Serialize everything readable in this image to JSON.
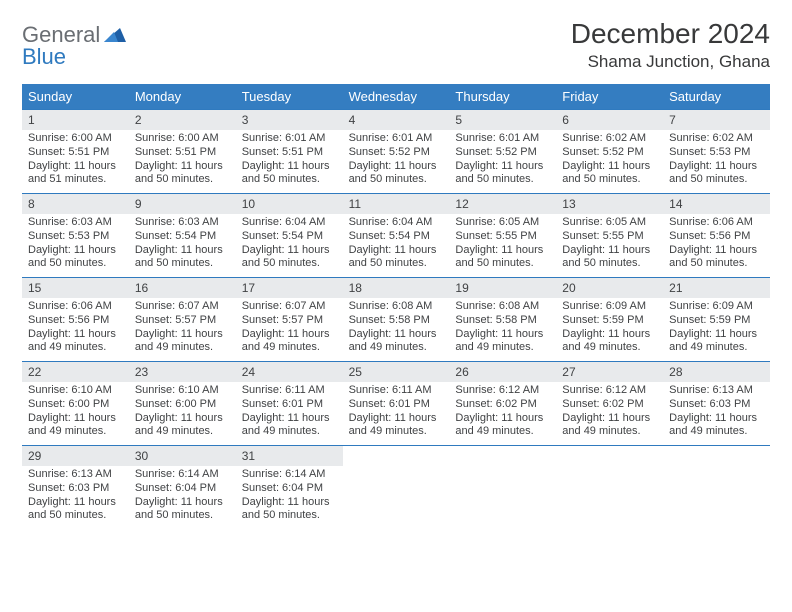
{
  "brand": {
    "general": "General",
    "blue": "Blue"
  },
  "title": {
    "month": "December 2024",
    "location": "Shama Junction, Ghana"
  },
  "colors": {
    "header_bg": "#347dc1",
    "header_text": "#ffffff",
    "daynum_bg": "#e8eaec",
    "week_border": "#2f7abf",
    "text": "#404244"
  },
  "weekdays": [
    "Sunday",
    "Monday",
    "Tuesday",
    "Wednesday",
    "Thursday",
    "Friday",
    "Saturday"
  ],
  "layout": {
    "first_weekday_index": 0
  },
  "days": [
    {
      "n": 1,
      "sunrise": "6:00 AM",
      "sunset": "5:51 PM",
      "daylight": "11 hours and 51 minutes."
    },
    {
      "n": 2,
      "sunrise": "6:00 AM",
      "sunset": "5:51 PM",
      "daylight": "11 hours and 50 minutes."
    },
    {
      "n": 3,
      "sunrise": "6:01 AM",
      "sunset": "5:51 PM",
      "daylight": "11 hours and 50 minutes."
    },
    {
      "n": 4,
      "sunrise": "6:01 AM",
      "sunset": "5:52 PM",
      "daylight": "11 hours and 50 minutes."
    },
    {
      "n": 5,
      "sunrise": "6:01 AM",
      "sunset": "5:52 PM",
      "daylight": "11 hours and 50 minutes."
    },
    {
      "n": 6,
      "sunrise": "6:02 AM",
      "sunset": "5:52 PM",
      "daylight": "11 hours and 50 minutes."
    },
    {
      "n": 7,
      "sunrise": "6:02 AM",
      "sunset": "5:53 PM",
      "daylight": "11 hours and 50 minutes."
    },
    {
      "n": 8,
      "sunrise": "6:03 AM",
      "sunset": "5:53 PM",
      "daylight": "11 hours and 50 minutes."
    },
    {
      "n": 9,
      "sunrise": "6:03 AM",
      "sunset": "5:54 PM",
      "daylight": "11 hours and 50 minutes."
    },
    {
      "n": 10,
      "sunrise": "6:04 AM",
      "sunset": "5:54 PM",
      "daylight": "11 hours and 50 minutes."
    },
    {
      "n": 11,
      "sunrise": "6:04 AM",
      "sunset": "5:54 PM",
      "daylight": "11 hours and 50 minutes."
    },
    {
      "n": 12,
      "sunrise": "6:05 AM",
      "sunset": "5:55 PM",
      "daylight": "11 hours and 50 minutes."
    },
    {
      "n": 13,
      "sunrise": "6:05 AM",
      "sunset": "5:55 PM",
      "daylight": "11 hours and 50 minutes."
    },
    {
      "n": 14,
      "sunrise": "6:06 AM",
      "sunset": "5:56 PM",
      "daylight": "11 hours and 50 minutes."
    },
    {
      "n": 15,
      "sunrise": "6:06 AM",
      "sunset": "5:56 PM",
      "daylight": "11 hours and 49 minutes."
    },
    {
      "n": 16,
      "sunrise": "6:07 AM",
      "sunset": "5:57 PM",
      "daylight": "11 hours and 49 minutes."
    },
    {
      "n": 17,
      "sunrise": "6:07 AM",
      "sunset": "5:57 PM",
      "daylight": "11 hours and 49 minutes."
    },
    {
      "n": 18,
      "sunrise": "6:08 AM",
      "sunset": "5:58 PM",
      "daylight": "11 hours and 49 minutes."
    },
    {
      "n": 19,
      "sunrise": "6:08 AM",
      "sunset": "5:58 PM",
      "daylight": "11 hours and 49 minutes."
    },
    {
      "n": 20,
      "sunrise": "6:09 AM",
      "sunset": "5:59 PM",
      "daylight": "11 hours and 49 minutes."
    },
    {
      "n": 21,
      "sunrise": "6:09 AM",
      "sunset": "5:59 PM",
      "daylight": "11 hours and 49 minutes."
    },
    {
      "n": 22,
      "sunrise": "6:10 AM",
      "sunset": "6:00 PM",
      "daylight": "11 hours and 49 minutes."
    },
    {
      "n": 23,
      "sunrise": "6:10 AM",
      "sunset": "6:00 PM",
      "daylight": "11 hours and 49 minutes."
    },
    {
      "n": 24,
      "sunrise": "6:11 AM",
      "sunset": "6:01 PM",
      "daylight": "11 hours and 49 minutes."
    },
    {
      "n": 25,
      "sunrise": "6:11 AM",
      "sunset": "6:01 PM",
      "daylight": "11 hours and 49 minutes."
    },
    {
      "n": 26,
      "sunrise": "6:12 AM",
      "sunset": "6:02 PM",
      "daylight": "11 hours and 49 minutes."
    },
    {
      "n": 27,
      "sunrise": "6:12 AM",
      "sunset": "6:02 PM",
      "daylight": "11 hours and 49 minutes."
    },
    {
      "n": 28,
      "sunrise": "6:13 AM",
      "sunset": "6:03 PM",
      "daylight": "11 hours and 49 minutes."
    },
    {
      "n": 29,
      "sunrise": "6:13 AM",
      "sunset": "6:03 PM",
      "daylight": "11 hours and 50 minutes."
    },
    {
      "n": 30,
      "sunrise": "6:14 AM",
      "sunset": "6:04 PM",
      "daylight": "11 hours and 50 minutes."
    },
    {
      "n": 31,
      "sunrise": "6:14 AM",
      "sunset": "6:04 PM",
      "daylight": "11 hours and 50 minutes."
    }
  ]
}
